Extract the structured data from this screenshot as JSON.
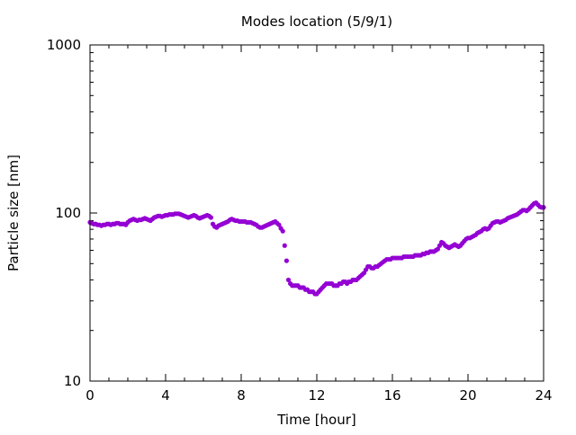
{
  "chart_data": {
    "type": "scatter",
    "title": "Modes location (5/9/1)",
    "xlabel": "Time [hour]",
    "ylabel": "Particle size [nm]",
    "xlim": [
      0,
      24
    ],
    "ylim": [
      10,
      1000
    ],
    "yscale": "log",
    "x_ticks": [
      0,
      4,
      8,
      12,
      16,
      20,
      24
    ],
    "x_tick_labels": [
      "0",
      "4",
      "8",
      "12",
      "16",
      "20",
      "24"
    ],
    "y_ticks": [
      10,
      100,
      1000
    ],
    "y_tick_labels": [
      "10",
      "100",
      "1000"
    ],
    "grid": false,
    "legend": "none",
    "marker_color": "#9400d3",
    "series": [
      {
        "x": [
          0.0,
          0.1,
          0.2,
          0.3,
          0.4,
          0.5,
          0.6,
          0.7,
          0.8,
          0.9,
          1.0,
          1.1,
          1.2,
          1.3,
          1.4,
          1.5,
          1.6,
          1.7,
          1.8,
          1.9,
          2.0,
          2.1,
          2.2,
          2.3,
          2.4,
          2.5,
          2.6,
          2.7,
          2.8,
          2.9,
          3.0,
          3.1,
          3.2,
          3.3,
          3.4,
          3.5,
          3.6,
          3.7,
          3.8,
          3.9,
          4.0,
          4.1,
          4.2,
          4.3,
          4.4,
          4.5,
          4.6,
          4.7,
          4.8,
          4.9,
          5.0,
          5.1,
          5.2,
          5.3,
          5.4,
          5.5,
          5.6,
          5.7,
          5.8,
          5.9,
          6.0,
          6.1,
          6.2,
          6.3,
          6.4,
          6.5,
          6.6,
          6.7,
          6.8,
          6.9,
          7.0,
          7.1,
          7.2,
          7.3,
          7.4,
          7.5,
          7.6,
          7.7,
          7.8,
          7.9,
          8.0,
          8.1,
          8.2,
          8.3,
          8.4,
          8.5,
          8.6,
          8.7,
          8.8,
          8.9,
          9.0,
          9.1,
          9.2,
          9.3,
          9.4,
          9.5,
          9.6,
          9.7,
          9.8,
          9.9,
          10.0,
          10.1,
          10.2,
          10.3,
          10.4,
          10.5,
          10.6,
          10.7,
          10.8,
          10.9,
          11.0,
          11.1,
          11.2,
          11.3,
          11.4,
          11.5,
          11.6,
          11.7,
          11.8,
          11.9,
          12.0,
          12.1,
          12.2,
          12.3,
          12.4,
          12.5,
          12.6,
          12.7,
          12.8,
          12.9,
          13.0,
          13.1,
          13.2,
          13.3,
          13.4,
          13.5,
          13.6,
          13.7,
          13.8,
          13.9,
          14.0,
          14.1,
          14.2,
          14.3,
          14.4,
          14.5,
          14.6,
          14.7,
          14.8,
          14.9,
          15.0,
          15.1,
          15.2,
          15.3,
          15.4,
          15.5,
          15.6,
          15.7,
          15.8,
          15.9,
          16.0,
          16.1,
          16.2,
          16.3,
          16.4,
          16.5,
          16.6,
          16.7,
          16.8,
          16.9,
          17.0,
          17.1,
          17.2,
          17.3,
          17.4,
          17.5,
          17.6,
          17.7,
          17.8,
          17.9,
          18.0,
          18.1,
          18.2,
          18.3,
          18.4,
          18.5,
          18.6,
          18.7,
          18.8,
          18.9,
          19.0,
          19.1,
          19.2,
          19.3,
          19.4,
          19.5,
          19.6,
          19.7,
          19.8,
          19.9,
          20.0,
          20.1,
          20.2,
          20.3,
          20.4,
          20.5,
          20.6,
          20.7,
          20.8,
          20.9,
          21.0,
          21.1,
          21.2,
          21.3,
          21.4,
          21.5,
          21.6,
          21.7,
          21.8,
          21.9,
          22.0,
          22.1,
          22.2,
          22.3,
          22.4,
          22.5,
          22.6,
          22.7,
          22.8,
          22.9,
          23.0,
          23.1,
          23.2,
          23.3,
          23.4,
          23.5,
          23.6,
          23.7,
          23.8,
          23.9,
          24.0
        ],
        "y": [
          88,
          87,
          86,
          86,
          85,
          85,
          84,
          85,
          85,
          86,
          86,
          85,
          86,
          86,
          87,
          87,
          86,
          86,
          86,
          85,
          88,
          90,
          91,
          92,
          91,
          90,
          91,
          91,
          92,
          93,
          92,
          91,
          90,
          92,
          94,
          95,
          96,
          96,
          95,
          96,
          97,
          97,
          98,
          98,
          98,
          99,
          99,
          99,
          98,
          97,
          96,
          95,
          94,
          95,
          96,
          97,
          96,
          94,
          93,
          94,
          95,
          96,
          97,
          96,
          94,
          86,
          83,
          82,
          84,
          85,
          86,
          87,
          88,
          89,
          91,
          92,
          91,
          90,
          90,
          89,
          89,
          89,
          89,
          88,
          88,
          88,
          87,
          86,
          85,
          83,
          82,
          82,
          83,
          84,
          85,
          86,
          87,
          88,
          89,
          87,
          85,
          81,
          78,
          64,
          52,
          40,
          38,
          37,
          37,
          37,
          37,
          36,
          36,
          36,
          35,
          35,
          34,
          34,
          34,
          33,
          33,
          34,
          35,
          36,
          37,
          38,
          38,
          38,
          38,
          37,
          37,
          37,
          38,
          38,
          39,
          39,
          38,
          39,
          39,
          40,
          40,
          40,
          41,
          42,
          43,
          44,
          46,
          48,
          48,
          47,
          47,
          48,
          48,
          49,
          50,
          51,
          52,
          53,
          53,
          53,
          54,
          54,
          54,
          54,
          54,
          54,
          55,
          55,
          55,
          55,
          55,
          55,
          56,
          56,
          56,
          56,
          57,
          57,
          58,
          58,
          59,
          59,
          59,
          60,
          61,
          64,
          67,
          66,
          64,
          63,
          62,
          63,
          64,
          65,
          64,
          63,
          64,
          66,
          68,
          70,
          71,
          71,
          72,
          73,
          74,
          76,
          77,
          78,
          80,
          81,
          80,
          81,
          84,
          87,
          88,
          89,
          89,
          88,
          89,
          90,
          91,
          93,
          94,
          95,
          96,
          97,
          98,
          100,
          102,
          104,
          104,
          103,
          105,
          108,
          111,
          114,
          115,
          112,
          109,
          108,
          108
        ]
      }
    ]
  }
}
